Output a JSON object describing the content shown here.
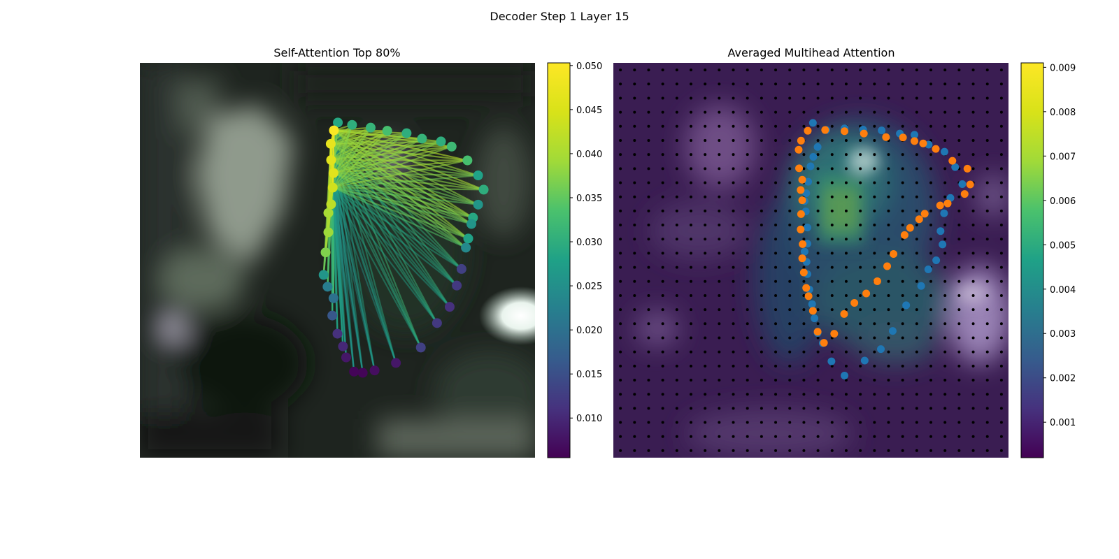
{
  "figure": {
    "suptitle": "Decoder Step 1 Layer 15"
  },
  "chart_data": [
    {
      "type": "scatter",
      "title": "Self-Attention Top 80%",
      "xlabel": "",
      "ylabel": "",
      "background": "blurred dark photograph (greens/greys, bright white highlight on right edge)",
      "colorbar": {
        "colormap": "viridis",
        "range": [
          0.0055,
          0.0503
        ],
        "ticks": [
          "0.010",
          "0.015",
          "0.020",
          "0.025",
          "0.030",
          "0.035",
          "0.040",
          "0.045",
          "0.050"
        ]
      },
      "contour_points": {
        "x": [
          0.501,
          0.537,
          0.584,
          0.626,
          0.675,
          0.714,
          0.762,
          0.789,
          0.829,
          0.856,
          0.87,
          0.856,
          0.843,
          0.839,
          0.831,
          0.825,
          0.814,
          0.802,
          0.784,
          0.752,
          0.711,
          0.648,
          0.594,
          0.564,
          0.542,
          0.522,
          0.514,
          0.5,
          0.487,
          0.49,
          0.475,
          0.465,
          0.47,
          0.477,
          0.477,
          0.484,
          0.488,
          0.49,
          0.484,
          0.483,
          0.491
        ],
        "y": [
          0.151,
          0.157,
          0.164,
          0.172,
          0.178,
          0.192,
          0.199,
          0.212,
          0.247,
          0.285,
          0.321,
          0.359,
          0.392,
          0.408,
          0.445,
          0.468,
          0.522,
          0.564,
          0.618,
          0.659,
          0.721,
          0.76,
          0.779,
          0.785,
          0.782,
          0.746,
          0.718,
          0.686,
          0.64,
          0.596,
          0.567,
          0.537,
          0.48,
          0.429,
          0.38,
          0.358,
          0.316,
          0.279,
          0.246,
          0.205,
          0.171
        ],
        "weights": [
          0.029,
          0.03,
          0.031,
          0.033,
          0.03,
          0.031,
          0.03,
          0.032,
          0.033,
          0.028,
          0.03,
          0.026,
          0.029,
          0.026,
          0.028,
          0.024,
          0.013,
          0.012,
          0.011,
          0.012,
          0.013,
          0.008,
          0.007,
          0.006,
          0.006,
          0.008,
          0.01,
          0.011,
          0.016,
          0.02,
          0.022,
          0.026,
          0.037,
          0.039,
          0.04,
          0.042,
          0.044,
          0.046,
          0.046,
          0.047,
          0.05
        ]
      },
      "attention_source": "points at upper-left of contour (x≈0.48–0.50, y≈0.20–0.30) with lines fanning to all contour points"
    },
    {
      "type": "scatter",
      "title": "Averaged Multihead Attention",
      "xlabel": "",
      "ylabel": "",
      "background": "attention heatmap (viridis, alpha) over dim purple-tinted photo, 28x28 black grid dots",
      "colorbar": {
        "colormap": "viridis",
        "range": [
          0.0002,
          0.0091
        ],
        "ticks": [
          "0.001",
          "0.002",
          "0.003",
          "0.004",
          "0.005",
          "0.006",
          "0.007",
          "0.008",
          "0.009"
        ]
      },
      "series": [
        {
          "color": "#1f77b4",
          "x": [
            0.505,
            0.539,
            0.585,
            0.632,
            0.679,
            0.725,
            0.762,
            0.798,
            0.838,
            0.865,
            0.883,
            0.853,
            0.837,
            0.828,
            0.833,
            0.817,
            0.797,
            0.779,
            0.741,
            0.707,
            0.677,
            0.636,
            0.585,
            0.552,
            0.53,
            0.517,
            0.509,
            0.503,
            0.496,
            0.491,
            0.489,
            0.484,
            0.491,
            0.491,
            0.487,
            0.484,
            0.488,
            0.493,
            0.499,
            0.506,
            0.517
          ],
          "y": [
            0.152,
            0.17,
            0.166,
            0.169,
            0.171,
            0.179,
            0.182,
            0.207,
            0.225,
            0.264,
            0.307,
            0.342,
            0.381,
            0.426,
            0.46,
            0.5,
            0.523,
            0.565,
            0.614,
            0.679,
            0.725,
            0.754,
            0.792,
            0.756,
            0.71,
            0.684,
            0.647,
            0.611,
            0.574,
            0.535,
            0.504,
            0.478,
            0.458,
            0.417,
            0.376,
            0.35,
            0.33,
            0.301,
            0.262,
            0.238,
            0.213
          ]
        },
        {
          "color": "#ff7f0e",
          "x": [
            0.469,
            0.475,
            0.492,
            0.536,
            0.585,
            0.634,
            0.69,
            0.733,
            0.762,
            0.784,
            0.816,
            0.858,
            0.896,
            0.903,
            0.889,
            0.846,
            0.827,
            0.788,
            0.774,
            0.751,
            0.737,
            0.709,
            0.693,
            0.668,
            0.64,
            0.61,
            0.584,
            0.559,
            0.533,
            0.517,
            0.505,
            0.494,
            0.488,
            0.482,
            0.478,
            0.479,
            0.474,
            0.475,
            0.478,
            0.474,
            0.478,
            0.47
          ],
          "y": [
            0.22,
            0.197,
            0.172,
            0.17,
            0.173,
            0.179,
            0.188,
            0.189,
            0.198,
            0.204,
            0.218,
            0.248,
            0.268,
            0.308,
            0.332,
            0.356,
            0.361,
            0.382,
            0.396,
            0.418,
            0.436,
            0.484,
            0.515,
            0.553,
            0.584,
            0.608,
            0.636,
            0.686,
            0.709,
            0.681,
            0.628,
            0.591,
            0.57,
            0.531,
            0.495,
            0.459,
            0.422,
            0.383,
            0.348,
            0.322,
            0.296,
            0.267
          ]
        }
      ]
    }
  ]
}
